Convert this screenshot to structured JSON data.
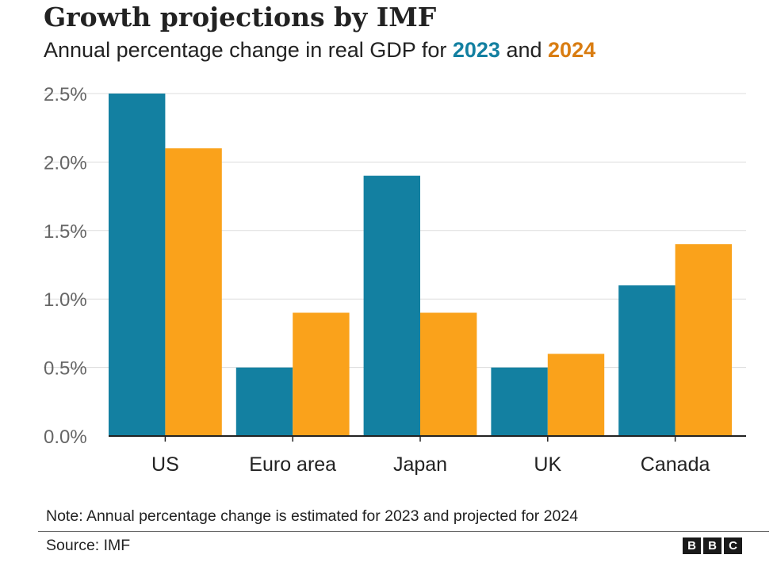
{
  "header": {
    "title": "Growth projections by IMF",
    "subtitle_prefix": "Annual percentage change in real GDP for",
    "subtitle_year1": "2023",
    "subtitle_joiner": "and",
    "subtitle_year2": "2024"
  },
  "chart_data": {
    "type": "bar",
    "title": "Growth projections by IMF",
    "subtitle": "Annual percentage change in real GDP for 2023 and 2024",
    "xlabel": "",
    "ylabel": "",
    "categories": [
      "US",
      "Euro area",
      "Japan",
      "UK",
      "Canada"
    ],
    "series": [
      {
        "name": "2023",
        "color": "#1380A1",
        "values": [
          2.5,
          0.5,
          1.9,
          0.5,
          1.1
        ]
      },
      {
        "name": "2024",
        "color": "#FAA21B",
        "values": [
          2.1,
          0.9,
          0.9,
          0.6,
          1.4
        ]
      }
    ],
    "ylim": [
      0,
      2.5
    ],
    "yticks": [
      0,
      0.5,
      1.0,
      1.5,
      2.0,
      2.5
    ],
    "ytick_labels": [
      "0.0%",
      "0.5%",
      "1.0%",
      "1.5%",
      "2.0%",
      "2.5%"
    ],
    "grid": true,
    "legend": "in subtitle"
  },
  "footer": {
    "note": "Note: Annual percentage change is estimated for 2023 and projected for 2024",
    "source": "Source: IMF",
    "logo_letters": [
      "B",
      "B",
      "C"
    ]
  },
  "colors": {
    "year1_text": "#1380A1",
    "year2_text": "#D97D12",
    "gridline": "#dddddd",
    "axis": "#222222"
  }
}
